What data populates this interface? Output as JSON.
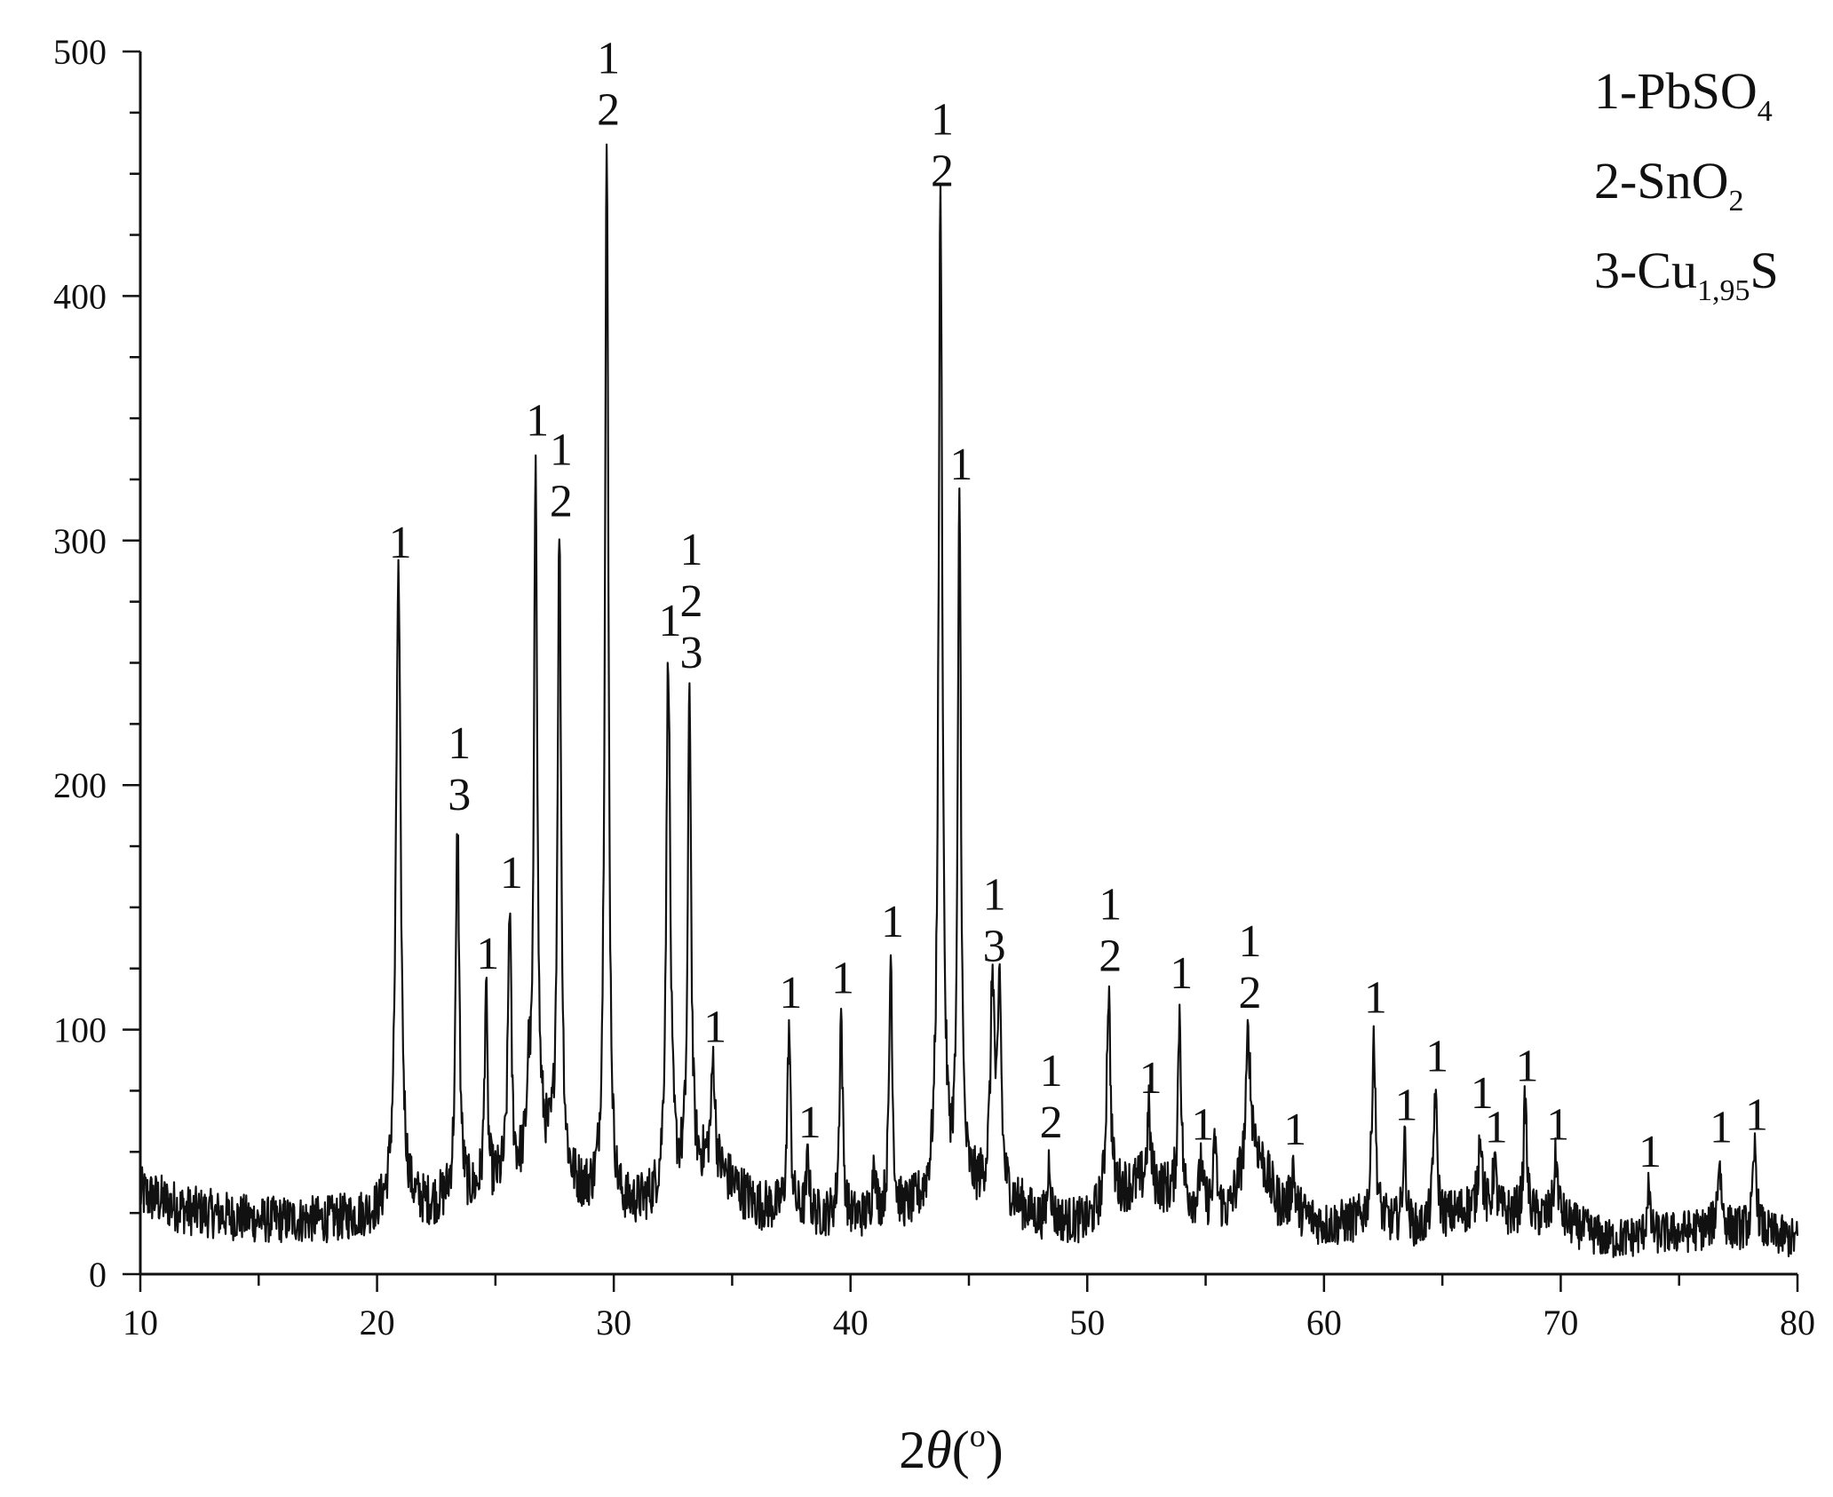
{
  "chart_data": {
    "type": "line",
    "title": "",
    "xlabel": "2θ(°)",
    "xlabel_parts": {
      "main": "2",
      "theta": "θ",
      "open": "(",
      "sup": "o",
      "close": ")"
    },
    "ylabel": "",
    "xlim": [
      10,
      80
    ],
    "ylim": [
      0,
      500
    ],
    "xticks": [
      10,
      20,
      30,
      40,
      50,
      60,
      70,
      80
    ],
    "yticks": [
      0,
      100,
      200,
      300,
      400,
      500
    ],
    "grid": false,
    "legend_position": "top-right",
    "line_color": "#111111",
    "baseline": [
      [
        10,
        33
      ],
      [
        12,
        26
      ],
      [
        15,
        22
      ],
      [
        18,
        22
      ],
      [
        20,
        24
      ],
      [
        22,
        27
      ],
      [
        24,
        31
      ],
      [
        26,
        40
      ],
      [
        27,
        48
      ],
      [
        28,
        36
      ],
      [
        30,
        24
      ],
      [
        32,
        30
      ],
      [
        34,
        45
      ],
      [
        36,
        28
      ],
      [
        38,
        24
      ],
      [
        40,
        22
      ],
      [
        42,
        24
      ],
      [
        44,
        30
      ],
      [
        46,
        35
      ],
      [
        48,
        22
      ],
      [
        50,
        21
      ],
      [
        51.5,
        34
      ],
      [
        52.5,
        38
      ],
      [
        54,
        30
      ],
      [
        56,
        26
      ],
      [
        57,
        55
      ],
      [
        58,
        30
      ],
      [
        60,
        20
      ],
      [
        62,
        22
      ],
      [
        64,
        18
      ],
      [
        66,
        26
      ],
      [
        68,
        24
      ],
      [
        70,
        22
      ],
      [
        72,
        14
      ],
      [
        74,
        16
      ],
      [
        76,
        18
      ],
      [
        78,
        18
      ],
      [
        80,
        14
      ]
    ],
    "peaks": [
      {
        "x": 20.9,
        "y": 285,
        "w": 0.12,
        "label": [
          "1"
        ]
      },
      {
        "x": 23.4,
        "y": 182,
        "w": 0.09,
        "label": [
          "1",
          "3"
        ]
      },
      {
        "x": 24.6,
        "y": 117,
        "w": 0.07,
        "label": [
          "1"
        ]
      },
      {
        "x": 25.6,
        "y": 150,
        "w": 0.08,
        "label": [
          "1"
        ]
      },
      {
        "x": 26.4,
        "y": 74,
        "w": 0.08,
        "label": []
      },
      {
        "x": 26.7,
        "y": 335,
        "w": 0.08,
        "label": [
          "1"
        ]
      },
      {
        "x": 27.7,
        "y": 302,
        "w": 0.09,
        "label": [
          "1",
          "2"
        ]
      },
      {
        "x": 29.7,
        "y": 462,
        "w": 0.09,
        "label": [
          "1",
          "2"
        ]
      },
      {
        "x": 32.3,
        "y": 253,
        "w": 0.1,
        "label": [
          "1"
        ]
      },
      {
        "x": 33.2,
        "y": 240,
        "w": 0.08,
        "label": [
          "1",
          "2",
          "3"
        ]
      },
      {
        "x": 34.2,
        "y": 87,
        "w": 0.09,
        "label": [
          "1"
        ]
      },
      {
        "x": 37.4,
        "y": 101,
        "w": 0.08,
        "label": [
          "1"
        ]
      },
      {
        "x": 38.2,
        "y": 48,
        "w": 0.07,
        "label": [
          "1"
        ]
      },
      {
        "x": 39.6,
        "y": 107,
        "w": 0.08,
        "label": [
          "1"
        ]
      },
      {
        "x": 41.0,
        "y": 48,
        "w": 0.07,
        "label": []
      },
      {
        "x": 41.7,
        "y": 130,
        "w": 0.08,
        "label": [
          "1"
        ]
      },
      {
        "x": 43.8,
        "y": 437,
        "w": 0.1,
        "label": [
          "1",
          "2"
        ]
      },
      {
        "x": 44.6,
        "y": 317,
        "w": 0.08,
        "label": [
          "1"
        ]
      },
      {
        "x": 46.0,
        "y": 120,
        "w": 0.1,
        "label": [
          "1",
          "3"
        ]
      },
      {
        "x": 46.3,
        "y": 116,
        "w": 0.08,
        "label": []
      },
      {
        "x": 48.4,
        "y": 48,
        "w": 0.07,
        "label": [
          "1",
          "2"
        ]
      },
      {
        "x": 50.9,
        "y": 116,
        "w": 0.1,
        "label": [
          "1",
          "2"
        ]
      },
      {
        "x": 52.6,
        "y": 66,
        "w": 0.08,
        "label": [
          "1"
        ]
      },
      {
        "x": 53.9,
        "y": 109,
        "w": 0.08,
        "label": [
          "1"
        ]
      },
      {
        "x": 54.8,
        "y": 47,
        "w": 0.06,
        "label": [
          "1"
        ]
      },
      {
        "x": 55.4,
        "y": 55,
        "w": 0.07,
        "label": []
      },
      {
        "x": 56.8,
        "y": 101,
        "w": 0.09,
        "label": [
          "1",
          "2"
        ]
      },
      {
        "x": 58.7,
        "y": 45,
        "w": 0.07,
        "label": [
          "1"
        ]
      },
      {
        "x": 62.1,
        "y": 99,
        "w": 0.09,
        "label": [
          "1"
        ]
      },
      {
        "x": 63.4,
        "y": 55,
        "w": 0.08,
        "label": [
          "1"
        ]
      },
      {
        "x": 64.7,
        "y": 75,
        "w": 0.09,
        "label": [
          "1"
        ]
      },
      {
        "x": 66.6,
        "y": 60,
        "w": 0.09,
        "label": [
          "1"
        ]
      },
      {
        "x": 67.2,
        "y": 46,
        "w": 0.08,
        "label": [
          "1"
        ]
      },
      {
        "x": 68.5,
        "y": 71,
        "w": 0.08,
        "label": [
          "1"
        ]
      },
      {
        "x": 69.8,
        "y": 47,
        "w": 0.1,
        "label": [
          "1"
        ]
      },
      {
        "x": 73.7,
        "y": 36,
        "w": 0.07,
        "label": [
          "1"
        ]
      },
      {
        "x": 76.7,
        "y": 46,
        "w": 0.1,
        "label": [
          "1"
        ]
      },
      {
        "x": 78.2,
        "y": 51,
        "w": 0.09,
        "label": [
          "1"
        ]
      }
    ],
    "legend": [
      {
        "prefix": "1-PbSO",
        "sub": "4",
        "suffix": ""
      },
      {
        "prefix": "2-SnO",
        "sub": "2",
        "suffix": ""
      },
      {
        "prefix": "3-Cu",
        "sub": "1,95",
        "suffix": "S"
      }
    ]
  }
}
